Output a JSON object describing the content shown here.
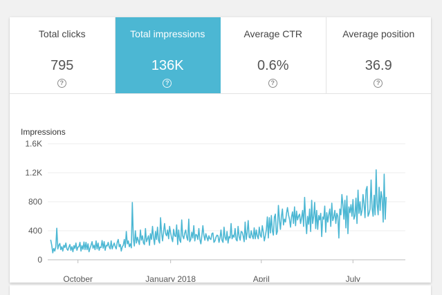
{
  "metrics": [
    {
      "label": "Total clicks",
      "value": "795",
      "selected": false
    },
    {
      "label": "Total impressions",
      "value": "136K",
      "selected": true
    },
    {
      "label": "Average CTR",
      "value": "0.6%",
      "selected": false
    },
    {
      "label": "Average position",
      "value": "36.9",
      "selected": false
    }
  ],
  "help_icon": "question-circle-icon",
  "colors": {
    "accent": "#4cb7d3",
    "line": "#4cb7d3",
    "gridline": "#eeeeee",
    "axis": "#bdbdbd",
    "text": "#555555"
  },
  "chart_data": {
    "type": "line",
    "ylabel": "Impressions",
    "ylim": [
      0,
      1600
    ],
    "yticks": [
      0,
      400,
      800,
      1200,
      1600
    ],
    "ytick_labels": [
      "0",
      "400",
      "800",
      "1.2K",
      "1.6K"
    ],
    "xlim": [
      "2017-09-01",
      "2018-08-22"
    ],
    "xticks": [
      "2017-10-01",
      "2018-01-01",
      "2018-04-01",
      "2018-07-01"
    ],
    "xtick_labels": [
      "October",
      "January 2018",
      "April",
      "July"
    ],
    "grid": true,
    "series": [
      {
        "start": "2017-09-04",
        "values": [
          270,
          200,
          95,
          155,
          120,
          180,
          435,
          150,
          200,
          225,
          140,
          180,
          120,
          200,
          170,
          230,
          150,
          130,
          175,
          210,
          130,
          180,
          110,
          195,
          155,
          230,
          130,
          175,
          180,
          240,
          120,
          195,
          145,
          245,
          140,
          240,
          140,
          220,
          110,
          160,
          200,
          250,
          160,
          200,
          140,
          260,
          150,
          230,
          130,
          175,
          170,
          265,
          160,
          250,
          130,
          200,
          190,
          240,
          180,
          150,
          260,
          150,
          195,
          230,
          180,
          150,
          240,
          280,
          180,
          210,
          120,
          180,
          200,
          280,
          170,
          390,
          220,
          260,
          180,
          220,
          165,
          790,
          290,
          190,
          400,
          230,
          310,
          260,
          210,
          410,
          270,
          330,
          230,
          210,
          430,
          250,
          290,
          330,
          200,
          360,
          280,
          460,
          310,
          210,
          390,
          280,
          450,
          270,
          230,
          580,
          370,
          260,
          390,
          500,
          360,
          330,
          410,
          290,
          460,
          370,
          300,
          250,
          420,
          330,
          320,
          480,
          210,
          410,
          270,
          240,
          550,
          330,
          290,
          370,
          410,
          310,
          270,
          560,
          250,
          280,
          380,
          300,
          470,
          260,
          350,
          340,
          280,
          430,
          280,
          220,
          330,
          470,
          340,
          270,
          360,
          310,
          260,
          330,
          290,
          280,
          360,
          370,
          240,
          260,
          310,
          340,
          330,
          240,
          300,
          410,
          270,
          240,
          450,
          310,
          270,
          390,
          230,
          320,
          300,
          500,
          290,
          340,
          310,
          430,
          280,
          260,
          460,
          320,
          270,
          390,
          380,
          330,
          250,
          520,
          280,
          380,
          540,
          310,
          300,
          400,
          330,
          290,
          440,
          290,
          410,
          330,
          290,
          450,
          340,
          310,
          470,
          380,
          260,
          330,
          410,
          590,
          300,
          580,
          370,
          610,
          400,
          340,
          590,
          630,
          350,
          390,
          750,
          550,
          420,
          600,
          700,
          480,
          560,
          520,
          640,
          720,
          620,
          560,
          450,
          590,
          660,
          500,
          730,
          470,
          670,
          550,
          600,
          630,
          500,
          580,
          680,
          460,
          860,
          560,
          360,
          600,
          490,
          700,
          390,
          820,
          500,
          600,
          790,
          430,
          680,
          420,
          610,
          550,
          640,
          320,
          590,
          560,
          740,
          380,
          650,
          520,
          620,
          700,
          460,
          780,
          540,
          590,
          680,
          500,
          640,
          600,
          300,
          700,
          620,
          900,
          760,
          560,
          820,
          440,
          880,
          360,
          730,
          650,
          760,
          600,
          830,
          560,
          610,
          850,
          500,
          960,
          640,
          800,
          610,
          680,
          900,
          770,
          580,
          960,
          1010,
          600,
          640,
          700,
          1100,
          720,
          600,
          890,
          620,
          1240,
          770,
          620,
          1000,
          680,
          940,
          850,
          520,
          1180,
          560,
          860
        ]
      }
    ]
  }
}
